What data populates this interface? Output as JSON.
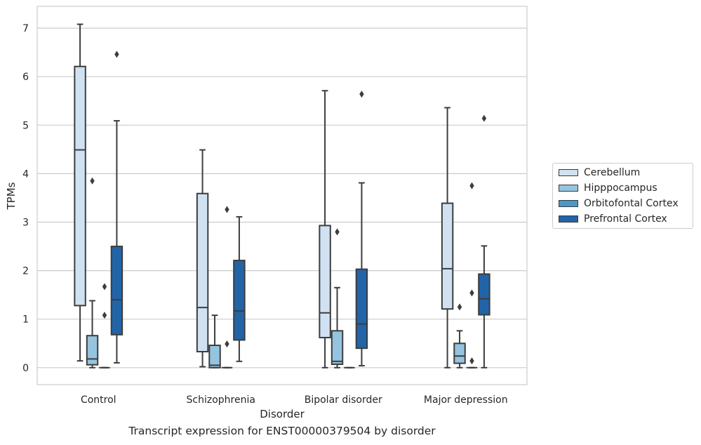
{
  "caption": "Transcript expression for ENST00000379504 by disorder",
  "chart_data": {
    "type": "boxplot",
    "title": "",
    "xlabel": "Disorder",
    "ylabel": "TPMs",
    "ylim": [
      -0.35,
      7.45
    ],
    "yticks": [
      0,
      1,
      2,
      3,
      4,
      5,
      6,
      7
    ],
    "grid": "horizontal",
    "legend_position": "right",
    "categories": [
      "Control",
      "Schizophrenia",
      "Bipolar disorder",
      "Major depression"
    ],
    "series": [
      {
        "name": "Cerebellum",
        "color": "#d0e1f2",
        "boxes": [
          {
            "whislo": 0.14,
            "q1": 1.28,
            "med": 4.49,
            "q3": 6.21,
            "whishi": 7.08,
            "fliers": []
          },
          {
            "whislo": 0.02,
            "q1": 0.33,
            "med": 1.24,
            "q3": 3.59,
            "whishi": 4.49,
            "fliers": []
          },
          {
            "whislo": 0.0,
            "q1": 0.62,
            "med": 1.13,
            "q3": 2.93,
            "whishi": 5.71,
            "fliers": []
          },
          {
            "whislo": 0.0,
            "q1": 1.21,
            "med": 2.04,
            "q3": 3.39,
            "whishi": 5.36,
            "fliers": []
          }
        ]
      },
      {
        "name": "Hipppocampus",
        "color": "#94c4df",
        "boxes": [
          {
            "whislo": 0.0,
            "q1": 0.06,
            "med": 0.18,
            "q3": 0.66,
            "whishi": 1.38,
            "fliers": [
              3.85
            ]
          },
          {
            "whislo": 0.0,
            "q1": 0.0,
            "med": 0.05,
            "q3": 0.46,
            "whishi": 1.08,
            "fliers": []
          },
          {
            "whislo": 0.0,
            "q1": 0.07,
            "med": 0.13,
            "q3": 0.76,
            "whishi": 1.65,
            "fliers": [
              2.8
            ]
          },
          {
            "whislo": 0.0,
            "q1": 0.09,
            "med": 0.24,
            "q3": 0.5,
            "whishi": 0.76,
            "fliers": [
              1.25
            ]
          }
        ]
      },
      {
        "name": "Orbitofontal Cortex",
        "color": "#4a98c9",
        "boxes": [
          {
            "whislo": 0.0,
            "q1": 0.0,
            "med": 0.0,
            "q3": 0.0,
            "whishi": 0.0,
            "fliers": [
              1.08,
              1.67
            ]
          },
          {
            "whislo": 0.0,
            "q1": 0.0,
            "med": 0.0,
            "q3": 0.0,
            "whishi": 0.0,
            "fliers": [
              0.49,
              3.26
            ]
          },
          {
            "whislo": 0.0,
            "q1": 0.0,
            "med": 0.0,
            "q3": 0.0,
            "whishi": 0.0,
            "fliers": []
          },
          {
            "whislo": 0.0,
            "q1": 0.0,
            "med": 0.0,
            "q3": 0.0,
            "whishi": 0.0,
            "fliers": [
              0.14,
              1.54,
              3.75
            ]
          }
        ]
      },
      {
        "name": "Prefrontal Cortex",
        "color": "#2264a8",
        "boxes": [
          {
            "whislo": 0.1,
            "q1": 0.68,
            "med": 1.4,
            "q3": 2.5,
            "whishi": 5.09,
            "fliers": [
              6.46
            ]
          },
          {
            "whislo": 0.13,
            "q1": 0.57,
            "med": 1.17,
            "q3": 2.21,
            "whishi": 3.11,
            "fliers": []
          },
          {
            "whislo": 0.04,
            "q1": 0.4,
            "med": 0.9,
            "q3": 2.03,
            "whishi": 3.81,
            "fliers": [
              5.64
            ]
          },
          {
            "whislo": 0.0,
            "q1": 1.09,
            "med": 1.42,
            "q3": 1.93,
            "whishi": 2.51,
            "fliers": [
              5.14
            ]
          }
        ]
      }
    ]
  }
}
